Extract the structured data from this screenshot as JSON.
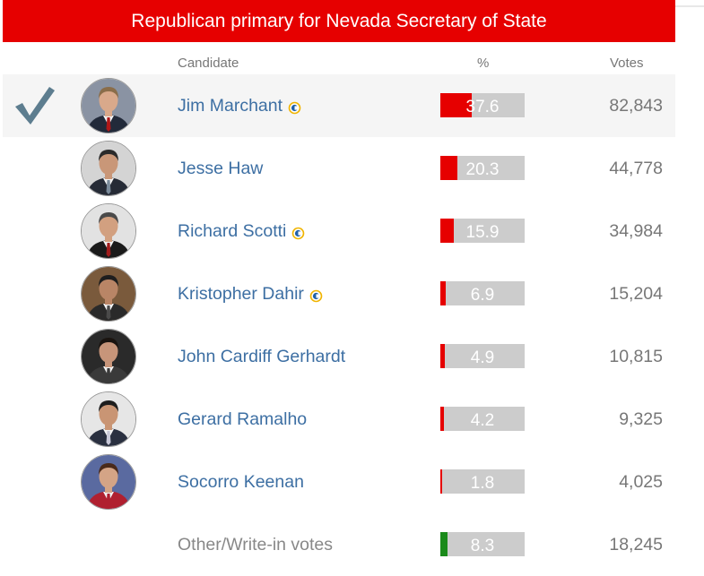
{
  "title": "Republican primary for Nevada Secretary of State",
  "columns": {
    "candidate": "Candidate",
    "percent": "%",
    "votes": "Votes"
  },
  "colors": {
    "header": "#e60000",
    "republican": "#e60000",
    "other": "#1a8a1a",
    "name": "#3d6fa3",
    "bar_bg": "#cccccc"
  },
  "candidates": [
    {
      "name": "Jim Marchant",
      "percent": "37.6",
      "pct_value": 37.6,
      "votes": "82,843",
      "winner": true,
      "incumbent_icon": true,
      "bar_color": "#e60000",
      "avatar": {
        "bg": "#8a93a3",
        "skin": "#d9a98b",
        "hair": "#8a6d4a",
        "suit": "#222a3a",
        "tie": "#b01818"
      }
    },
    {
      "name": "Jesse Haw",
      "percent": "20.3",
      "pct_value": 20.3,
      "votes": "44,778",
      "winner": false,
      "incumbent_icon": false,
      "bar_color": "#e60000",
      "avatar": {
        "bg": "#d4d4d4",
        "skin": "#c99778",
        "hair": "#2a2a2a",
        "suit": "#262b36",
        "tie": "#7a8a9a"
      }
    },
    {
      "name": "Richard Scotti",
      "percent": "15.9",
      "pct_value": 15.9,
      "votes": "34,984",
      "winner": false,
      "incumbent_icon": true,
      "bar_color": "#e60000",
      "avatar": {
        "bg": "#e2e2e2",
        "skin": "#d2a080",
        "hair": "#4a4a4a",
        "suit": "#1a1a1a",
        "tie": "#a01c1c"
      }
    },
    {
      "name": "Kristopher Dahir",
      "percent": "6.9",
      "pct_value": 6.9,
      "votes": "15,204",
      "winner": false,
      "incumbent_icon": true,
      "bar_color": "#e60000",
      "avatar": {
        "bg": "#7a5a3c",
        "skin": "#b98566",
        "hair": "#1e1e1e",
        "suit": "#2a2a2a",
        "tie": "#4a4a4a"
      }
    },
    {
      "name": "John Cardiff Gerhardt",
      "percent": "4.9",
      "pct_value": 4.9,
      "votes": "10,815",
      "winner": false,
      "incumbent_icon": false,
      "bar_color": "#e60000",
      "avatar": {
        "bg": "#2a2a2a",
        "skin": "#c7957a",
        "hair": "#1a1410",
        "suit": "#3a3a3a",
        "tie": "#3a3a3a"
      }
    },
    {
      "name": "Gerard Ramalho",
      "percent": "4.2",
      "pct_value": 4.2,
      "votes": "9,325",
      "winner": false,
      "incumbent_icon": false,
      "bar_color": "#e60000",
      "avatar": {
        "bg": "#e6e6e6",
        "skin": "#c99574",
        "hair": "#1e1e1e",
        "suit": "#2a3040",
        "tie": "#c8c8d8"
      }
    },
    {
      "name": "Socorro Keenan",
      "percent": "1.8",
      "pct_value": 1.8,
      "votes": "4,025",
      "winner": false,
      "incumbent_icon": false,
      "bar_color": "#e60000",
      "avatar": {
        "bg": "#5a6aa0",
        "skin": "#d4a486",
        "hair": "#4a2a1a",
        "suit": "#b02030",
        "tie": "#b02030"
      }
    },
    {
      "name": "Other/Write-in votes",
      "percent": "8.3",
      "pct_value": 8.3,
      "votes": "18,245",
      "winner": false,
      "incumbent_icon": false,
      "bar_color": "#1a8a1a",
      "other": true
    }
  ]
}
